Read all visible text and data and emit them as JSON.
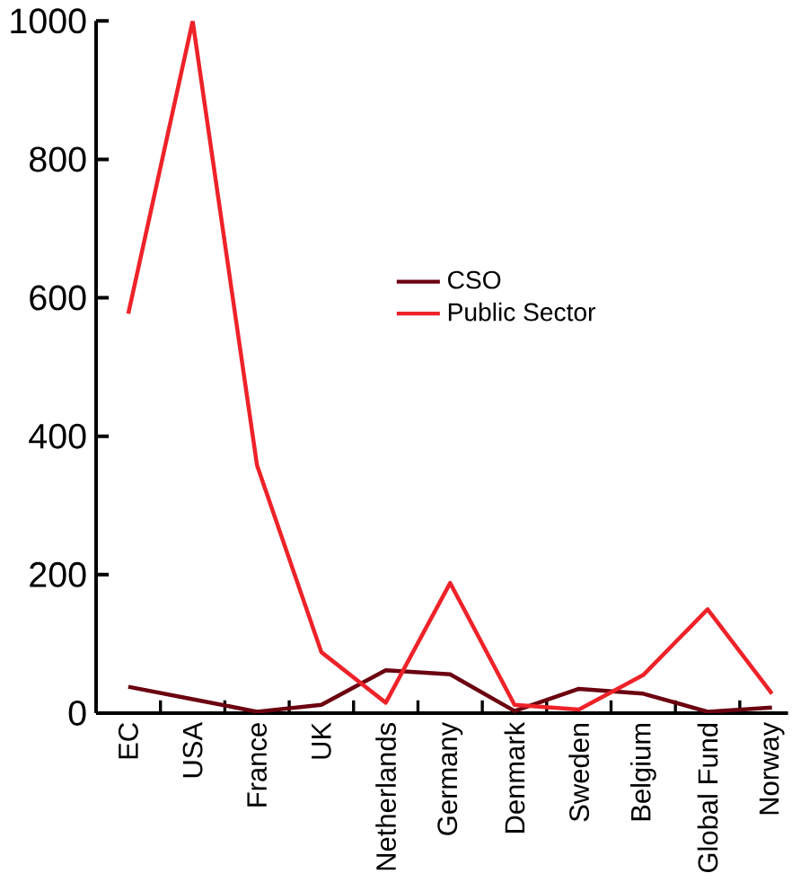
{
  "chart_data": {
    "type": "line",
    "categories": [
      "EC",
      "USA",
      "France",
      "UK",
      "Netherlands",
      "Germany",
      "Denmark",
      "Sweden",
      "Belgium",
      "Global Fund",
      "Norway"
    ],
    "series": [
      {
        "name": "CSO",
        "color": "#6b0010",
        "values": [
          38,
          20,
          2,
          12,
          62,
          56,
          3,
          35,
          28,
          2,
          8
        ]
      },
      {
        "name": "Public Sector",
        "color": "#ee2229",
        "values": [
          577,
          1000,
          358,
          88,
          15,
          188,
          12,
          5,
          55,
          150,
          28
        ]
      }
    ],
    "ylim": [
      0,
      1000
    ],
    "yticks": [
      0,
      200,
      400,
      600,
      800,
      1000
    ],
    "grid": false,
    "legend": "center",
    "marker": "none",
    "line_style": "solid"
  }
}
